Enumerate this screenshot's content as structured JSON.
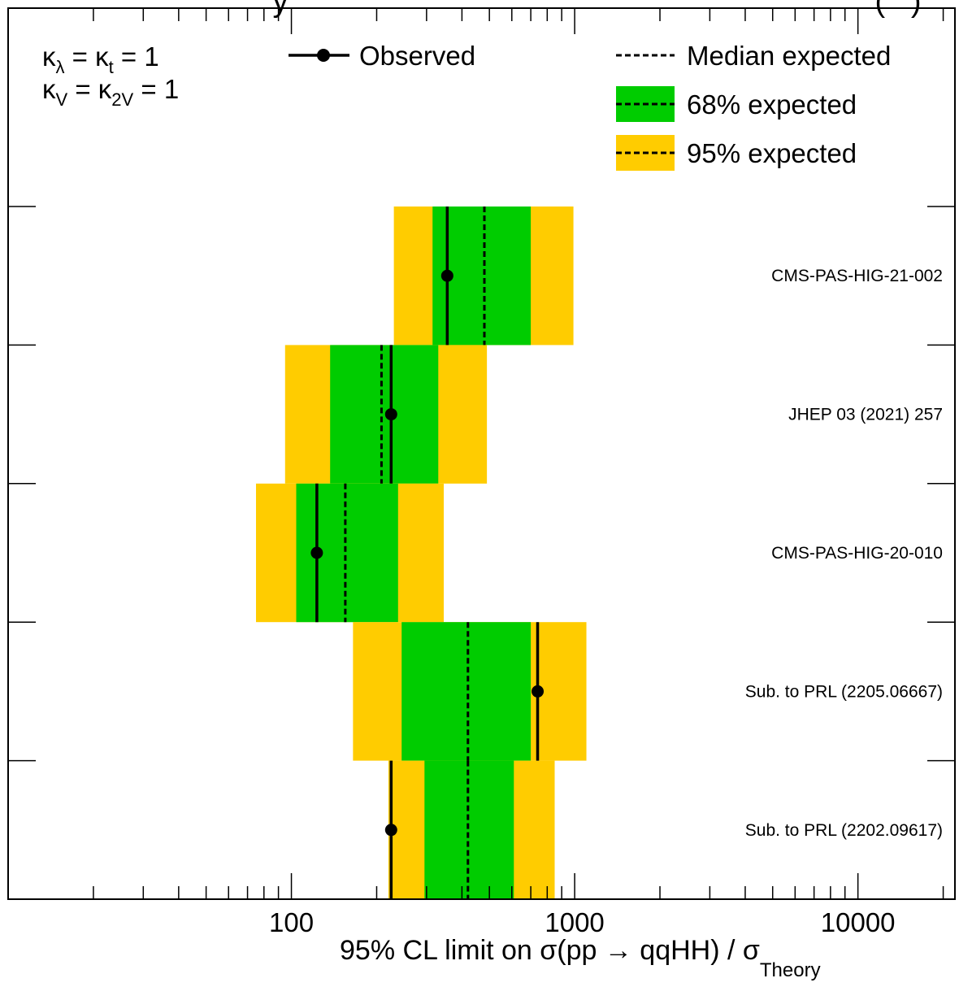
{
  "header_fragment": {
    "left": "y",
    "right": "(   )"
  },
  "kappa_annotation": [
    {
      "base": "κ",
      "sub": "λ",
      "eq": " = ",
      "base2": "κ",
      "sub2": "t",
      "tail": " = 1"
    },
    {
      "base": "κ",
      "sub": "V",
      "eq": " = ",
      "base2": "κ",
      "sub2": "2V",
      "tail": " = 1"
    }
  ],
  "legend": {
    "observed": "Observed",
    "median": "Median expected",
    "band68": "68% expected",
    "band95": "95% expected"
  },
  "colors": {
    "band68": "#00CC00",
    "band95": "#FFCC00",
    "line": "#000000"
  },
  "chart_data": {
    "type": "limit-bands",
    "xscale": "log",
    "xlim": [
      10,
      22000
    ],
    "xticks": [
      {
        "value": 100,
        "label": "100"
      },
      {
        "value": 1000,
        "label": "1000"
      },
      {
        "value": 10000,
        "label": "10000"
      }
    ],
    "xlabel": {
      "main": "95% CL limit on σ(pp → qqHH) / σ",
      "sub": "Theory"
    },
    "rows": [
      {
        "label": "CMS-PAS-HIG-21-002",
        "observed": 355,
        "expected": 480,
        "band68": [
          315,
          700
        ],
        "band95": [
          230,
          990
        ]
      },
      {
        "label": "JHEP 03 (2021) 257",
        "observed": 225,
        "expected": 208,
        "band68": [
          137,
          330
        ],
        "band95": [
          95,
          490
        ]
      },
      {
        "label": "CMS-PAS-HIG-20-010",
        "observed": 123,
        "expected": 155,
        "band68": [
          104,
          238
        ],
        "band95": [
          75,
          345
        ]
      },
      {
        "label": "Sub. to PRL (2205.06667)",
        "observed": 740,
        "expected": 420,
        "band68": [
          245,
          700
        ],
        "band95": [
          165,
          1100
        ]
      },
      {
        "label": "Sub. to PRL (2202.09617)",
        "observed": 225,
        "expected": 420,
        "band68": [
          295,
          610
        ],
        "band95": [
          220,
          850
        ]
      }
    ]
  }
}
